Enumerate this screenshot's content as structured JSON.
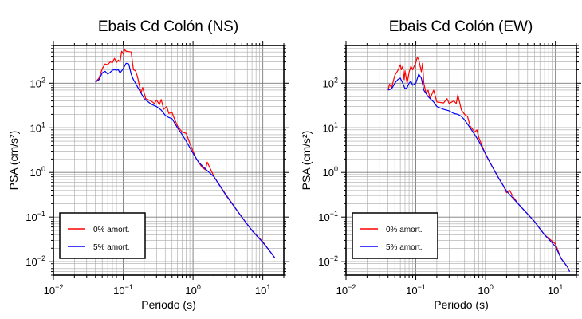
{
  "chart_data": [
    {
      "type": "line",
      "title": "Ebais Cd Colón (NS)",
      "xlabel": "Periodo (s)",
      "ylabel": "PSA (cm/s²)",
      "xscale": "log",
      "yscale": "log",
      "xlim": [
        0.01,
        20
      ],
      "ylim": [
        0.005,
        700
      ],
      "grid": true,
      "legend_position": "bottom-left",
      "x_ticks": [
        {
          "base": "10",
          "exp": "−2",
          "v": 0.01
        },
        {
          "base": "10",
          "exp": "−1",
          "v": 0.1
        },
        {
          "base": "10",
          "exp": "0",
          "v": 1
        },
        {
          "base": "10",
          "exp": "1",
          "v": 10
        }
      ],
      "y_ticks": [
        {
          "base": "10",
          "exp": "−2",
          "v": 0.01
        },
        {
          "base": "10",
          "exp": "−1",
          "v": 0.1
        },
        {
          "base": "10",
          "exp": "0",
          "v": 1
        },
        {
          "base": "10",
          "exp": "1",
          "v": 10
        },
        {
          "base": "10",
          "exp": "2",
          "v": 100
        }
      ],
      "series": [
        {
          "name": "0% amort.",
          "color": "#ff0000",
          "points": [
            [
              0.04,
              105
            ],
            [
              0.045,
              130
            ],
            [
              0.05,
              210
            ],
            [
              0.055,
              270
            ],
            [
              0.06,
              260
            ],
            [
              0.065,
              300
            ],
            [
              0.07,
              290
            ],
            [
              0.075,
              360
            ],
            [
              0.08,
              290
            ],
            [
              0.085,
              330
            ],
            [
              0.09,
              300
            ],
            [
              0.095,
              520
            ],
            [
              0.1,
              450
            ],
            [
              0.105,
              560
            ],
            [
              0.11,
              520
            ],
            [
              0.12,
              510
            ],
            [
              0.13,
              500
            ],
            [
              0.14,
              200
            ],
            [
              0.15,
              190
            ],
            [
              0.16,
              140
            ],
            [
              0.18,
              60
            ],
            [
              0.19,
              80
            ],
            [
              0.21,
              45
            ],
            [
              0.25,
              40
            ],
            [
              0.28,
              35
            ],
            [
              0.3,
              42
            ],
            [
              0.33,
              33
            ],
            [
              0.35,
              43
            ],
            [
              0.38,
              26
            ],
            [
              0.42,
              30
            ],
            [
              0.45,
              21
            ],
            [
              0.5,
              22
            ],
            [
              0.55,
              15
            ],
            [
              0.6,
              11
            ],
            [
              0.7,
              8
            ],
            [
              0.8,
              7.5
            ],
            [
              0.9,
              4.5
            ],
            [
              1.0,
              3
            ],
            [
              1.1,
              2.1
            ],
            [
              1.2,
              1.7
            ],
            [
              1.35,
              1.3
            ],
            [
              1.5,
              1.15
            ],
            [
              1.6,
              1.7
            ],
            [
              1.8,
              1.15
            ],
            [
              2.0,
              0.8
            ],
            [
              3.0,
              0.31
            ],
            [
              5.0,
              0.1
            ],
            [
              7.0,
              0.05
            ],
            [
              10.0,
              0.028
            ],
            [
              12.0,
              0.019
            ],
            [
              15.0,
              0.012
            ]
          ]
        },
        {
          "name": "5% amort.",
          "color": "#0000ff",
          "points": [
            [
              0.04,
              105
            ],
            [
              0.045,
              120
            ],
            [
              0.05,
              170
            ],
            [
              0.055,
              185
            ],
            [
              0.06,
              160
            ],
            [
              0.065,
              175
            ],
            [
              0.07,
              195
            ],
            [
              0.075,
              200
            ],
            [
              0.08,
              195
            ],
            [
              0.085,
              200
            ],
            [
              0.09,
              170
            ],
            [
              0.1,
              210
            ],
            [
              0.11,
              280
            ],
            [
              0.12,
              270
            ],
            [
              0.13,
              160
            ],
            [
              0.14,
              120
            ],
            [
              0.15,
              100
            ],
            [
              0.17,
              70
            ],
            [
              0.2,
              45
            ],
            [
              0.25,
              34
            ],
            [
              0.3,
              30
            ],
            [
              0.35,
              25
            ],
            [
              0.4,
              19
            ],
            [
              0.45,
              17
            ],
            [
              0.5,
              16
            ],
            [
              0.6,
              10
            ],
            [
              0.7,
              7
            ],
            [
              0.8,
              5
            ],
            [
              1.0,
              2.7
            ],
            [
              1.2,
              1.7
            ],
            [
              1.5,
              1.2
            ],
            [
              2.0,
              0.8
            ],
            [
              3.0,
              0.3
            ],
            [
              5.0,
              0.1
            ],
            [
              7.0,
              0.05
            ],
            [
              10.0,
              0.027
            ],
            [
              12.0,
              0.019
            ],
            [
              15.0,
              0.012
            ]
          ]
        }
      ]
    },
    {
      "type": "line",
      "title": "Ebais Cd Colón (EW)",
      "xlabel": "Periodo (s)",
      "ylabel": "PSA (cm/s²)",
      "xscale": "log",
      "yscale": "log",
      "xlim": [
        0.01,
        20
      ],
      "ylim": [
        0.005,
        700
      ],
      "grid": true,
      "legend_position": "bottom-left",
      "x_ticks": [
        {
          "base": "10",
          "exp": "−2",
          "v": 0.01
        },
        {
          "base": "10",
          "exp": "−1",
          "v": 0.1
        },
        {
          "base": "10",
          "exp": "0",
          "v": 1
        },
        {
          "base": "10",
          "exp": "1",
          "v": 10
        }
      ],
      "y_ticks": [
        {
          "base": "10",
          "exp": "−2",
          "v": 0.01
        },
        {
          "base": "10",
          "exp": "−1",
          "v": 0.1
        },
        {
          "base": "10",
          "exp": "0",
          "v": 1
        },
        {
          "base": "10",
          "exp": "1",
          "v": 10
        },
        {
          "base": "10",
          "exp": "2",
          "v": 100
        }
      ],
      "series": [
        {
          "name": "0% amort.",
          "color": "#ff0000",
          "points": [
            [
              0.04,
              70
            ],
            [
              0.042,
              95
            ],
            [
              0.045,
              80
            ],
            [
              0.05,
              150
            ],
            [
              0.055,
              190
            ],
            [
              0.06,
              260
            ],
            [
              0.062,
              200
            ],
            [
              0.065,
              240
            ],
            [
              0.068,
              120
            ],
            [
              0.07,
              190
            ],
            [
              0.075,
              100
            ],
            [
              0.08,
              175
            ],
            [
              0.085,
              240
            ],
            [
              0.09,
              200
            ],
            [
              0.1,
              290
            ],
            [
              0.105,
              380
            ],
            [
              0.11,
              340
            ],
            [
              0.12,
              180
            ],
            [
              0.125,
              280
            ],
            [
              0.13,
              100
            ],
            [
              0.14,
              60
            ],
            [
              0.15,
              70
            ],
            [
              0.16,
              45
            ],
            [
              0.18,
              70
            ],
            [
              0.2,
              38
            ],
            [
              0.25,
              36
            ],
            [
              0.28,
              45
            ],
            [
              0.3,
              35
            ],
            [
              0.35,
              40
            ],
            [
              0.38,
              35
            ],
            [
              0.4,
              55
            ],
            [
              0.45,
              25
            ],
            [
              0.5,
              20
            ],
            [
              0.55,
              18
            ],
            [
              0.6,
              11
            ],
            [
              0.7,
              8
            ],
            [
              0.75,
              9
            ],
            [
              0.8,
              6
            ],
            [
              0.9,
              3.8
            ],
            [
              1.0,
              2.5
            ],
            [
              1.2,
              1.5
            ],
            [
              1.5,
              0.8
            ],
            [
              1.8,
              0.5
            ],
            [
              2.0,
              0.35
            ],
            [
              2.2,
              0.4
            ],
            [
              2.5,
              0.28
            ],
            [
              3.0,
              0.19
            ],
            [
              5.0,
              0.08
            ],
            [
              7.0,
              0.04
            ],
            [
              10.0,
              0.025
            ],
            [
              12.0,
              0.012
            ],
            [
              15.0,
              0.0075
            ],
            [
              16.0,
              0.006
            ]
          ]
        },
        {
          "name": "5% amort.",
          "color": "#0000ff",
          "points": [
            [
              0.04,
              70
            ],
            [
              0.045,
              75
            ],
            [
              0.05,
              100
            ],
            [
              0.055,
              120
            ],
            [
              0.06,
              130
            ],
            [
              0.065,
              100
            ],
            [
              0.07,
              75
            ],
            [
              0.075,
              80
            ],
            [
              0.08,
              100
            ],
            [
              0.085,
              110
            ],
            [
              0.09,
              90
            ],
            [
              0.1,
              100
            ],
            [
              0.11,
              160
            ],
            [
              0.12,
              130
            ],
            [
              0.13,
              70
            ],
            [
              0.15,
              50
            ],
            [
              0.18,
              38
            ],
            [
              0.2,
              30
            ],
            [
              0.25,
              26
            ],
            [
              0.3,
              24
            ],
            [
              0.35,
              21
            ],
            [
              0.4,
              20
            ],
            [
              0.45,
              18
            ],
            [
              0.5,
              15
            ],
            [
              0.6,
              10
            ],
            [
              0.7,
              7
            ],
            [
              0.8,
              5
            ],
            [
              1.0,
              2.6
            ],
            [
              1.2,
              1.5
            ],
            [
              1.5,
              0.8
            ],
            [
              2.0,
              0.38
            ],
            [
              3.0,
              0.19
            ],
            [
              5.0,
              0.08
            ],
            [
              7.0,
              0.04
            ],
            [
              10.0,
              0.022
            ],
            [
              12.0,
              0.012
            ],
            [
              15.0,
              0.0075
            ],
            [
              16.0,
              0.006
            ]
          ]
        }
      ]
    }
  ]
}
